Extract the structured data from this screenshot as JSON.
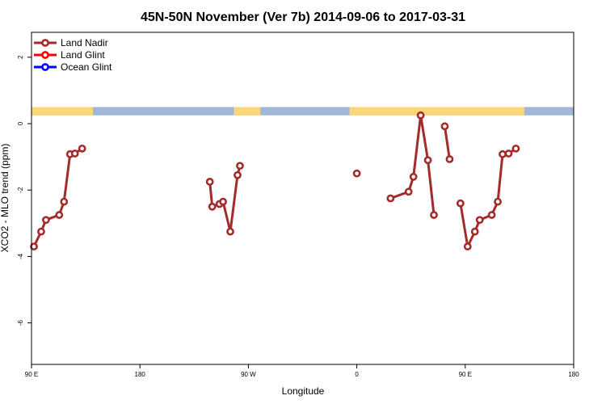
{
  "chart_data": {
    "type": "line",
    "title": "45N-50N November (Ver 7b)   2014-09-06 to 2017-03-31",
    "xlabel": "Longitude",
    "ylabel": "XCO2 - MLO trend (ppm)",
    "xlim": [
      90,
      450
    ],
    "ylim": [
      -7.25,
      2.75
    ],
    "x_ticks": [
      {
        "value": 90,
        "label": "90 E"
      },
      {
        "value": 180,
        "label": "180"
      },
      {
        "value": 270,
        "label": "90 W"
      },
      {
        "value": 360,
        "label": "0"
      },
      {
        "value": 450,
        "label": "90 E"
      },
      {
        "value": 540,
        "label": "180"
      }
    ],
    "x_range_shown": [
      90,
      540
    ],
    "y_ticks": [
      {
        "value": 2,
        "label": "2"
      },
      {
        "value": 0,
        "label": "0"
      },
      {
        "value": -2,
        "label": "-2"
      },
      {
        "value": -4,
        "label": "-4"
      },
      {
        "value": -6,
        "label": "-6"
      }
    ],
    "legend": {
      "placement": "top-left",
      "entries": [
        {
          "name": "Land Nadir",
          "color": "#a52a2a"
        },
        {
          "name": "Land Glint",
          "color": "#ff0000"
        },
        {
          "name": "Ocean Glint",
          "color": "#0000ff"
        }
      ]
    },
    "land_sea_strip": {
      "y_range": [
        0.25,
        0.5
      ],
      "land_color": "#fcd77a",
      "ocean_color": "#a2b7d8",
      "land_intervals": [
        [
          90,
          141
        ],
        [
          258,
          280
        ],
        [
          354,
          499
        ]
      ]
    },
    "series": [
      {
        "name": "Land Nadir",
        "color": "#a52a2a",
        "segments": [
          [
            [
              92,
              -3.7
            ],
            [
              98,
              -3.25
            ],
            [
              102,
              -2.9
            ],
            [
              113,
              -2.75
            ],
            [
              117,
              -2.35
            ],
            [
              122,
              -0.92
            ],
            [
              126,
              -0.9
            ],
            [
              132,
              -0.75
            ]
          ],
          [
            [
              238,
              -1.75
            ],
            [
              240,
              -2.5
            ],
            [
              246,
              -2.42
            ],
            [
              249,
              -2.35
            ],
            [
              255,
              -3.25
            ],
            [
              261,
              -1.55
            ],
            [
              263,
              -1.27
            ]
          ],
          [
            [
              360,
              -1.5
            ]
          ],
          [
            [
              388,
              -2.25
            ],
            [
              403,
              -2.05
            ],
            [
              407,
              -1.6
            ],
            [
              413,
              0.25
            ],
            [
              419,
              -1.1
            ],
            [
              424,
              -2.75
            ]
          ],
          [
            [
              433,
              -0.08
            ],
            [
              437,
              -1.07
            ]
          ],
          [
            [
              446,
              -2.4
            ],
            [
              452,
              -3.7
            ],
            [
              458,
              -3.25
            ],
            [
              462,
              -2.9
            ],
            [
              472,
              -2.75
            ],
            [
              477,
              -2.35
            ],
            [
              481,
              -0.92
            ],
            [
              486,
              -0.9
            ],
            [
              492,
              -0.75
            ]
          ]
        ]
      }
    ]
  }
}
